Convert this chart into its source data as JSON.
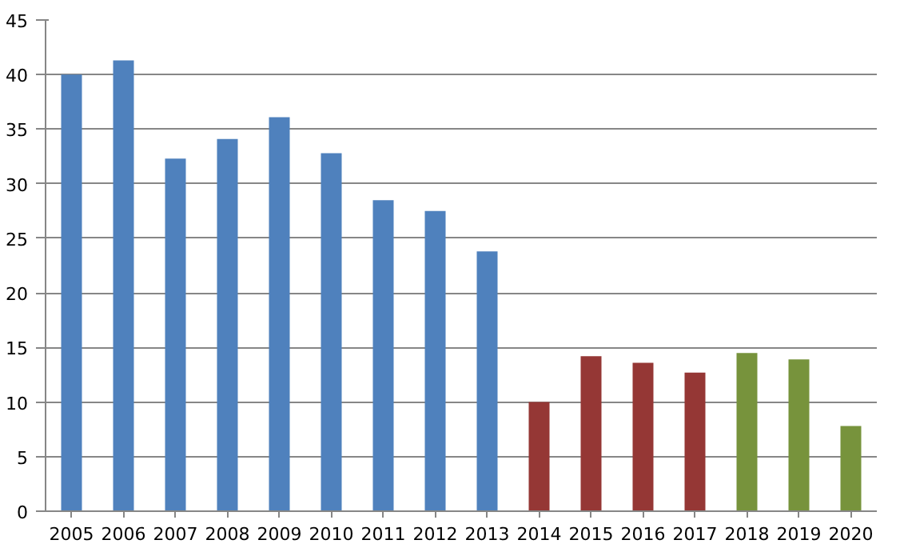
{
  "chart_data": {
    "type": "bar",
    "categories": [
      "2005",
      "2006",
      "2007",
      "2008",
      "2009",
      "2010",
      "2011",
      "2012",
      "2013",
      "2014",
      "2015",
      "2016",
      "2017",
      "2018",
      "2019",
      "2020"
    ],
    "values": [
      40.0,
      41.3,
      32.3,
      34.1,
      36.1,
      32.8,
      28.5,
      27.5,
      23.8,
      10.0,
      14.2,
      13.6,
      12.7,
      14.5,
      13.9,
      7.8
    ],
    "colors": [
      "#4f81bd",
      "#4f81bd",
      "#4f81bd",
      "#4f81bd",
      "#4f81bd",
      "#4f81bd",
      "#4f81bd",
      "#4f81bd",
      "#4f81bd",
      "#953735",
      "#953735",
      "#953735",
      "#953735",
      "#77933c",
      "#77933c",
      "#77933c"
    ],
    "ylim": [
      0,
      45
    ],
    "yticks": [
      0,
      5,
      10,
      15,
      20,
      25,
      30,
      35,
      40,
      45
    ],
    "grid": "y"
  }
}
